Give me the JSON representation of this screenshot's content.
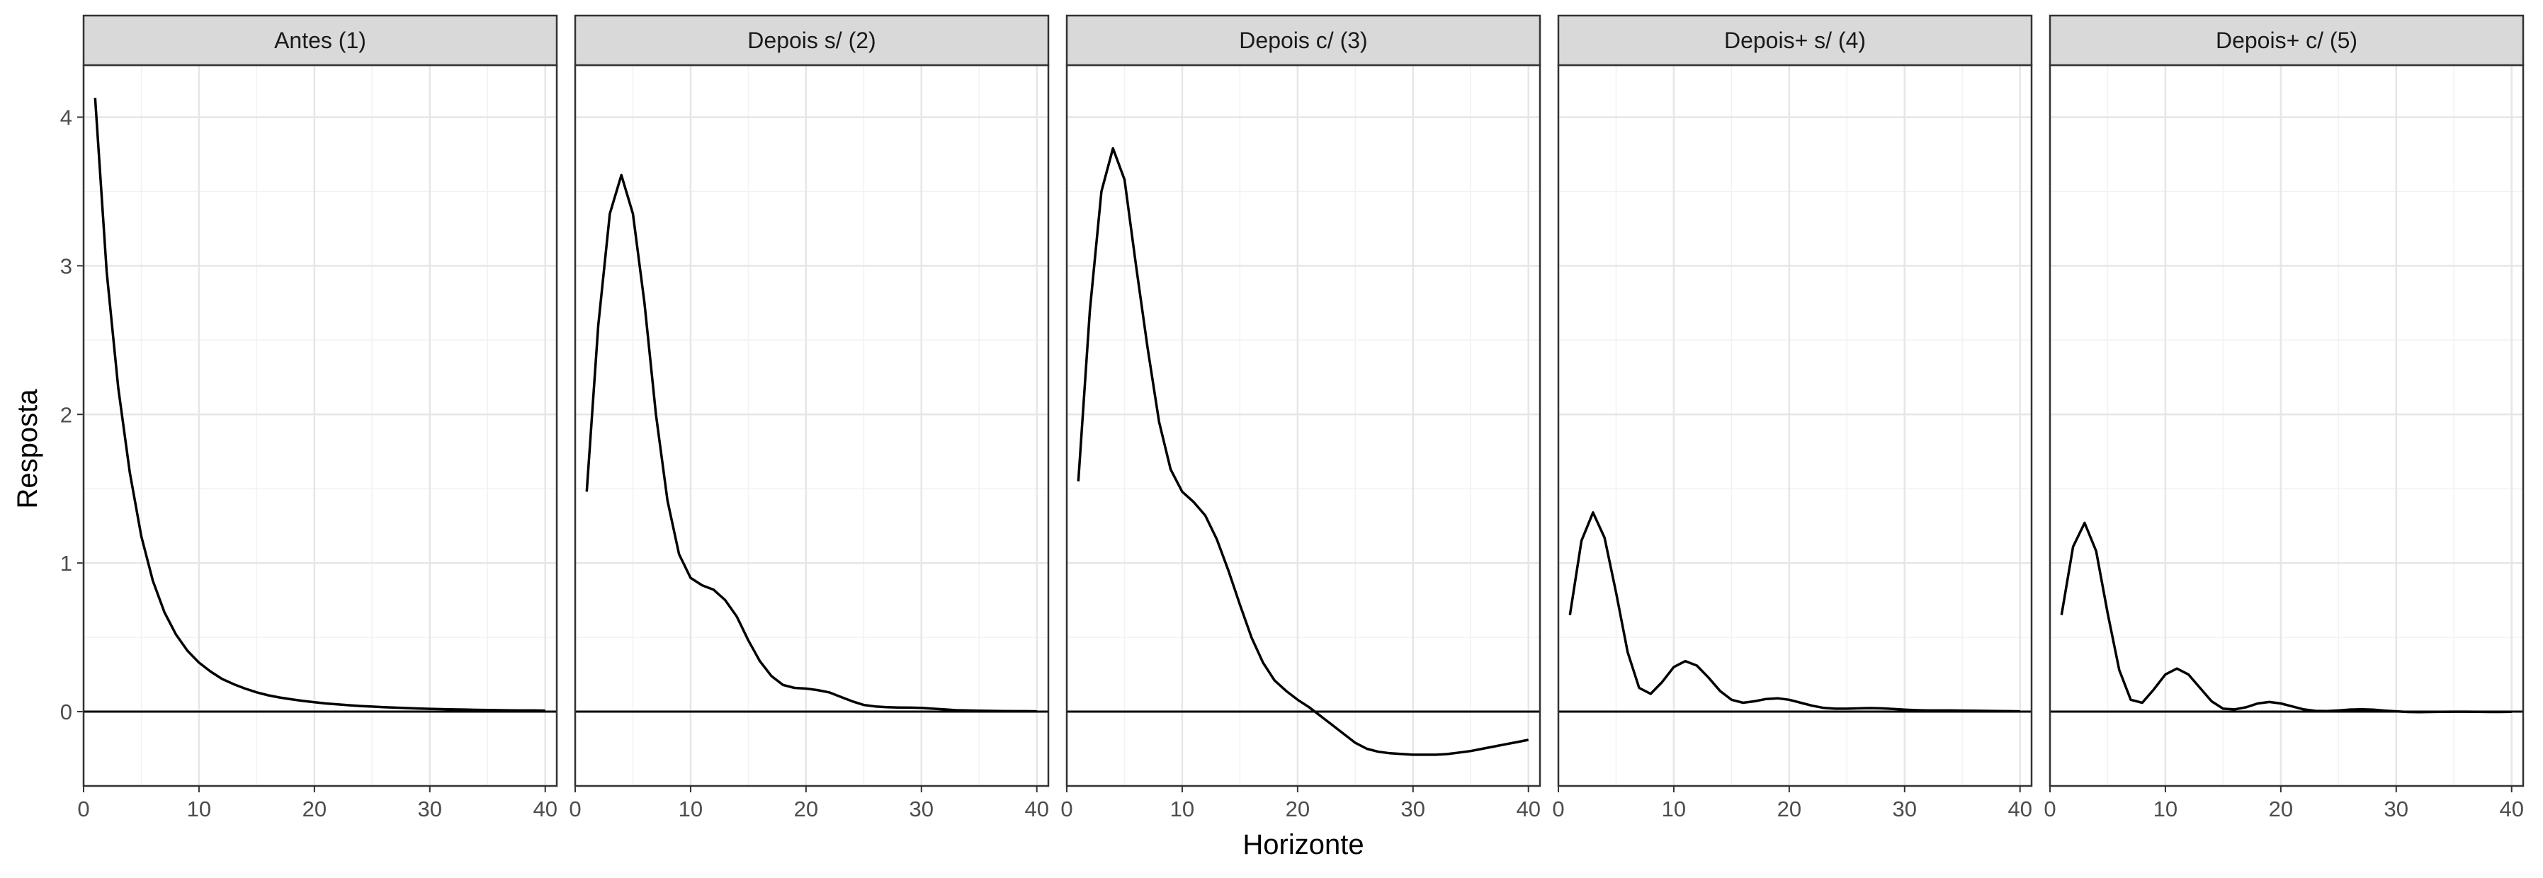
{
  "chart_data": {
    "type": "line",
    "layout": "facets",
    "xlabel": "Horizonte",
    "ylabel": "Resposta",
    "xlim": [
      0,
      41
    ],
    "ylim": [
      -0.5,
      4.35
    ],
    "x_ticks": [
      0,
      10,
      20,
      30,
      40
    ],
    "y_ticks": [
      0,
      1,
      2,
      3,
      4
    ],
    "reference_line_y": 0,
    "grid": true,
    "x": [
      1,
      2,
      3,
      4,
      5,
      6,
      7,
      8,
      9,
      10,
      11,
      12,
      13,
      14,
      15,
      16,
      17,
      18,
      19,
      20,
      21,
      22,
      23,
      24,
      25,
      26,
      27,
      28,
      29,
      30,
      31,
      32,
      33,
      34,
      35,
      36,
      37,
      38,
      39,
      40
    ],
    "panels": [
      {
        "title": "Antes (1)",
        "values": [
          4.13,
          2.96,
          2.18,
          1.61,
          1.18,
          0.88,
          0.67,
          0.52,
          0.41,
          0.33,
          0.27,
          0.22,
          0.185,
          0.155,
          0.13,
          0.11,
          0.095,
          0.083,
          0.072,
          0.063,
          0.055,
          0.049,
          0.043,
          0.038,
          0.034,
          0.03,
          0.027,
          0.024,
          0.021,
          0.019,
          0.017,
          0.015,
          0.014,
          0.012,
          0.011,
          0.01,
          0.009,
          0.008,
          0.008,
          0.007
        ]
      },
      {
        "title": "Depois s/ (2)",
        "values": [
          1.48,
          2.6,
          3.35,
          3.61,
          3.35,
          2.75,
          2.0,
          1.42,
          1.06,
          0.9,
          0.85,
          0.82,
          0.75,
          0.64,
          0.48,
          0.34,
          0.24,
          0.18,
          0.16,
          0.155,
          0.145,
          0.13,
          0.1,
          0.07,
          0.045,
          0.035,
          0.03,
          0.028,
          0.027,
          0.025,
          0.02,
          0.015,
          0.01,
          0.008,
          0.006,
          0.005,
          0.004,
          0.003,
          0.003,
          0.002
        ]
      },
      {
        "title": "Depois c/ (3)",
        "values": [
          1.55,
          2.7,
          3.5,
          3.79,
          3.58,
          3.0,
          2.45,
          1.95,
          1.63,
          1.48,
          1.41,
          1.32,
          1.16,
          0.95,
          0.72,
          0.5,
          0.33,
          0.21,
          0.14,
          0.08,
          0.03,
          -0.03,
          -0.09,
          -0.15,
          -0.21,
          -0.25,
          -0.27,
          -0.28,
          -0.285,
          -0.29,
          -0.29,
          -0.29,
          -0.285,
          -0.275,
          -0.265,
          -0.25,
          -0.235,
          -0.22,
          -0.205,
          -0.19
        ]
      },
      {
        "title": "Depois+ s/ (4)",
        "values": [
          0.65,
          1.15,
          1.34,
          1.17,
          0.8,
          0.4,
          0.16,
          0.12,
          0.2,
          0.3,
          0.34,
          0.31,
          0.23,
          0.14,
          0.08,
          0.06,
          0.07,
          0.085,
          0.09,
          0.08,
          0.06,
          0.04,
          0.025,
          0.02,
          0.02,
          0.022,
          0.024,
          0.022,
          0.018,
          0.013,
          0.01,
          0.008,
          0.008,
          0.008,
          0.007,
          0.006,
          0.005,
          0.004,
          0.003,
          0.002
        ]
      },
      {
        "title": "Depois+ c/ (5)",
        "values": [
          0.65,
          1.11,
          1.27,
          1.08,
          0.66,
          0.28,
          0.08,
          0.06,
          0.15,
          0.25,
          0.29,
          0.25,
          0.16,
          0.07,
          0.02,
          0.015,
          0.03,
          0.055,
          0.065,
          0.055,
          0.035,
          0.015,
          0.005,
          0.004,
          0.008,
          0.014,
          0.016,
          0.013,
          0.007,
          0.002,
          -0.002,
          -0.003,
          -0.002,
          -0.001,
          0.0,
          0.0,
          -0.001,
          -0.002,
          -0.002,
          -0.001
        ]
      }
    ]
  }
}
